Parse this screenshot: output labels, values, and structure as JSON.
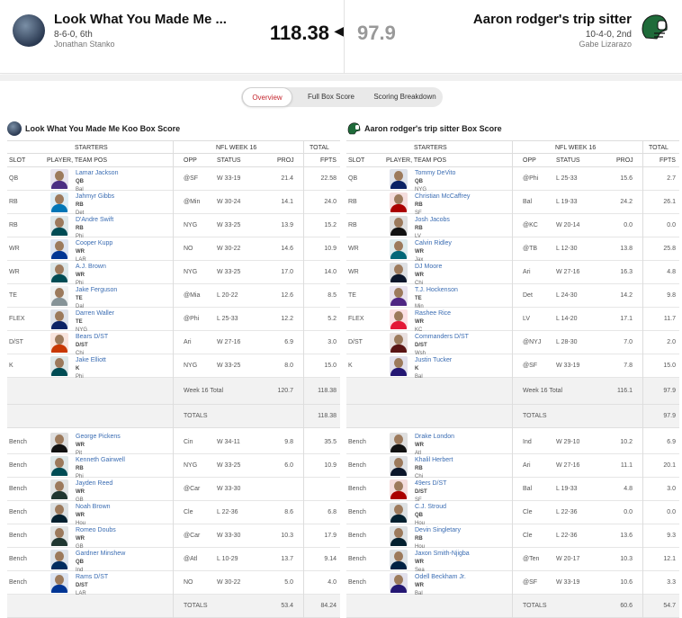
{
  "team1": {
    "name": "Look What You Made Me ...",
    "record": "8-6-0, 6th",
    "owner": "Jonathan Stanko",
    "score": "118.38"
  },
  "team2": {
    "name": "Aaron rodger's trip sitter",
    "record": "10-4-0, 2nd",
    "owner": "Gabe Lizarazo",
    "score": "97.9"
  },
  "tabs": [
    "Overview",
    "Full Box Score",
    "Scoring Breakdown"
  ],
  "box1": {
    "title": "Look What You Made Me Koo Box Score",
    "week_total": "120.7",
    "week_fpts": "118.38",
    "totals_fpts": "118.38",
    "bench_proj": "53.4",
    "bench_fpts": "84.24",
    "starters": [
      {
        "slot": "QB",
        "name": "Lamar Jackson",
        "team": "Bal",
        "pos": "QB",
        "opp": "@SF",
        "status": "W 33-19",
        "proj": "21.4",
        "fpts": "22.58",
        "color": "#4b2e83"
      },
      {
        "slot": "RB",
        "name": "Jahmyr Gibbs",
        "team": "Det",
        "pos": "RB",
        "opp": "@Min",
        "status": "W 30-24",
        "proj": "14.1",
        "fpts": "24.0",
        "color": "#0076b6"
      },
      {
        "slot": "RB",
        "name": "D'Andre Swift",
        "team": "Phi",
        "pos": "RB",
        "opp": "NYG",
        "status": "W 33-25",
        "proj": "13.9",
        "fpts": "15.2",
        "color": "#004c54"
      },
      {
        "slot": "WR",
        "name": "Cooper Kupp",
        "team": "LAR",
        "pos": "WR",
        "opp": "NO",
        "status": "W 30-22",
        "proj": "14.6",
        "fpts": "10.9",
        "color": "#003594"
      },
      {
        "slot": "WR",
        "name": "A.J. Brown",
        "team": "Phi",
        "pos": "WR",
        "opp": "NYG",
        "status": "W 33-25",
        "proj": "17.0",
        "fpts": "14.0",
        "color": "#004c54"
      },
      {
        "slot": "TE",
        "name": "Jake Ferguson",
        "team": "Dal",
        "pos": "TE",
        "opp": "@Mia",
        "status": "L 20-22",
        "proj": "12.6",
        "fpts": "8.5",
        "color": "#869397"
      },
      {
        "slot": "FLEX",
        "name": "Darren Waller",
        "team": "NYG",
        "pos": "TE",
        "opp": "@Phi",
        "status": "L 25-33",
        "proj": "12.2",
        "fpts": "5.2",
        "color": "#0b2265"
      },
      {
        "slot": "D/ST",
        "name": "Bears D/ST",
        "team": "Chi",
        "pos": "D/ST",
        "opp": "Ari",
        "status": "W 27-16",
        "proj": "6.9",
        "fpts": "3.0",
        "color": "#c83803"
      },
      {
        "slot": "K",
        "name": "Jake Elliott",
        "team": "Phi",
        "pos": "K",
        "opp": "NYG",
        "status": "W 33-25",
        "proj": "8.0",
        "fpts": "15.0",
        "color": "#004c54"
      }
    ],
    "bench": [
      {
        "slot": "Bench",
        "name": "George Pickens",
        "team": "Pit",
        "pos": "WR",
        "opp": "Cin",
        "status": "W 34-11",
        "proj": "9.8",
        "fpts": "35.5",
        "color": "#111111"
      },
      {
        "slot": "Bench",
        "name": "Kenneth Gainwell",
        "team": "Phi",
        "pos": "RB",
        "opp": "NYG",
        "status": "W 33-25",
        "proj": "6.0",
        "fpts": "10.9",
        "color": "#004c54"
      },
      {
        "slot": "Bench",
        "name": "Jayden Reed",
        "team": "GB",
        "pos": "WR",
        "opp": "@Car",
        "status": "W 33-30",
        "proj": "",
        "fpts": "",
        "color": "#203731"
      },
      {
        "slot": "Bench",
        "name": "Noah Brown",
        "team": "Hou",
        "pos": "WR",
        "opp": "Cle",
        "status": "L 22-36",
        "proj": "8.6",
        "fpts": "6.8",
        "color": "#03202f"
      },
      {
        "slot": "Bench",
        "name": "Romeo Doubs",
        "team": "GB",
        "pos": "WR",
        "opp": "@Car",
        "status": "W 33-30",
        "proj": "10.3",
        "fpts": "17.9",
        "color": "#203731"
      },
      {
        "slot": "Bench",
        "name": "Gardner Minshew",
        "team": "Ind",
        "pos": "QB",
        "opp": "@Atl",
        "status": "L 10-29",
        "proj": "13.7",
        "fpts": "9.14",
        "color": "#002c5f"
      },
      {
        "slot": "Bench",
        "name": "Rams D/ST",
        "team": "LAR",
        "pos": "D/ST",
        "opp": "NO",
        "status": "W 30-22",
        "proj": "5.0",
        "fpts": "4.0",
        "color": "#003594"
      }
    ]
  },
  "box2": {
    "title": "Aaron rodger's trip sitter Box Score",
    "week_total": "116.1",
    "week_fpts": "97.9",
    "totals_fpts": "97.9",
    "bench_proj": "60.6",
    "bench_fpts": "54.7",
    "starters": [
      {
        "slot": "QB",
        "name": "Tommy DeVito",
        "team": "NYG",
        "pos": "QB",
        "opp": "@Phi",
        "status": "L 25-33",
        "proj": "15.6",
        "fpts": "2.7",
        "color": "#0b2265"
      },
      {
        "slot": "RB",
        "name": "Christian McCaffrey",
        "team": "SF",
        "pos": "RB",
        "opp": "Bal",
        "status": "L 19-33",
        "proj": "24.2",
        "fpts": "26.1",
        "color": "#aa0000"
      },
      {
        "slot": "RB",
        "name": "Josh Jacobs",
        "team": "LV",
        "pos": "RB",
        "opp": "@KC",
        "status": "W 20-14",
        "proj": "0.0",
        "fpts": "0.0",
        "color": "#111111"
      },
      {
        "slot": "WR",
        "name": "Calvin Ridley",
        "team": "Jax",
        "pos": "WR",
        "opp": "@TB",
        "status": "L 12-30",
        "proj": "13.8",
        "fpts": "25.8",
        "color": "#006778"
      },
      {
        "slot": "WR",
        "name": "DJ Moore",
        "team": "Chi",
        "pos": "WR",
        "opp": "Ari",
        "status": "W 27-16",
        "proj": "16.3",
        "fpts": "4.8",
        "color": "#0b162a"
      },
      {
        "slot": "TE",
        "name": "T.J. Hockenson",
        "team": "Min",
        "pos": "TE",
        "opp": "Det",
        "status": "L 24-30",
        "proj": "14.2",
        "fpts": "9.8",
        "color": "#4f2683"
      },
      {
        "slot": "FLEX",
        "name": "Rashee Rice",
        "team": "KC",
        "pos": "WR",
        "opp": "LV",
        "status": "L 14-20",
        "proj": "17.1",
        "fpts": "11.7",
        "color": "#e31837"
      },
      {
        "slot": "D/ST",
        "name": "Commanders D/ST",
        "team": "Wsh",
        "pos": "D/ST",
        "opp": "@NYJ",
        "status": "L 28-30",
        "proj": "7.0",
        "fpts": "2.0",
        "color": "#5a1414"
      },
      {
        "slot": "K",
        "name": "Justin Tucker",
        "team": "Bal",
        "pos": "K",
        "opp": "@SF",
        "status": "W 33-19",
        "proj": "7.8",
        "fpts": "15.0",
        "color": "#241773"
      }
    ],
    "bench": [
      {
        "slot": "Bench",
        "name": "Drake London",
        "team": "Atl",
        "pos": "WR",
        "opp": "Ind",
        "status": "W 29-10",
        "proj": "10.2",
        "fpts": "6.9",
        "color": "#111111"
      },
      {
        "slot": "Bench",
        "name": "Khalil Herbert",
        "team": "Chi",
        "pos": "RB",
        "opp": "Ari",
        "status": "W 27-16",
        "proj": "11.1",
        "fpts": "20.1",
        "color": "#0b162a"
      },
      {
        "slot": "Bench",
        "name": "49ers D/ST",
        "team": "SF",
        "pos": "D/ST",
        "opp": "Bal",
        "status": "L 19-33",
        "proj": "4.8",
        "fpts": "3.0",
        "color": "#aa0000"
      },
      {
        "slot": "Bench",
        "name": "C.J. Stroud",
        "team": "Hou",
        "pos": "QB",
        "opp": "Cle",
        "status": "L 22-36",
        "proj": "0.0",
        "fpts": "0.0",
        "color": "#03202f"
      },
      {
        "slot": "Bench",
        "name": "Devin Singletary",
        "team": "Hou",
        "pos": "RB",
        "opp": "Cle",
        "status": "L 22-36",
        "proj": "13.6",
        "fpts": "9.3",
        "color": "#03202f"
      },
      {
        "slot": "Bench",
        "name": "Jaxon Smith-Njigba",
        "team": "Sea",
        "pos": "WR",
        "opp": "@Ten",
        "status": "W 20-17",
        "proj": "10.3",
        "fpts": "12.1",
        "color": "#002244"
      },
      {
        "slot": "Bench",
        "name": "Odell Beckham Jr.",
        "team": "Bal",
        "pos": "WR",
        "opp": "@SF",
        "status": "W 33-19",
        "proj": "10.6",
        "fpts": "3.3",
        "color": "#241773"
      }
    ]
  },
  "labels": {
    "starters": "STARTERS",
    "week": "NFL WEEK 16",
    "total": "TOTAL",
    "slot": "SLOT",
    "player": "PLAYER, TEAM POS",
    "opp": "OPP",
    "status": "STATUS",
    "proj": "PROJ",
    "fpts": "FPTS",
    "week_total": "Week 16 Total",
    "totals": "TOTALS"
  },
  "colors": {
    "accent": "#c4262e",
    "link": "#3b6db3",
    "helmet": "#1f6b3a"
  }
}
